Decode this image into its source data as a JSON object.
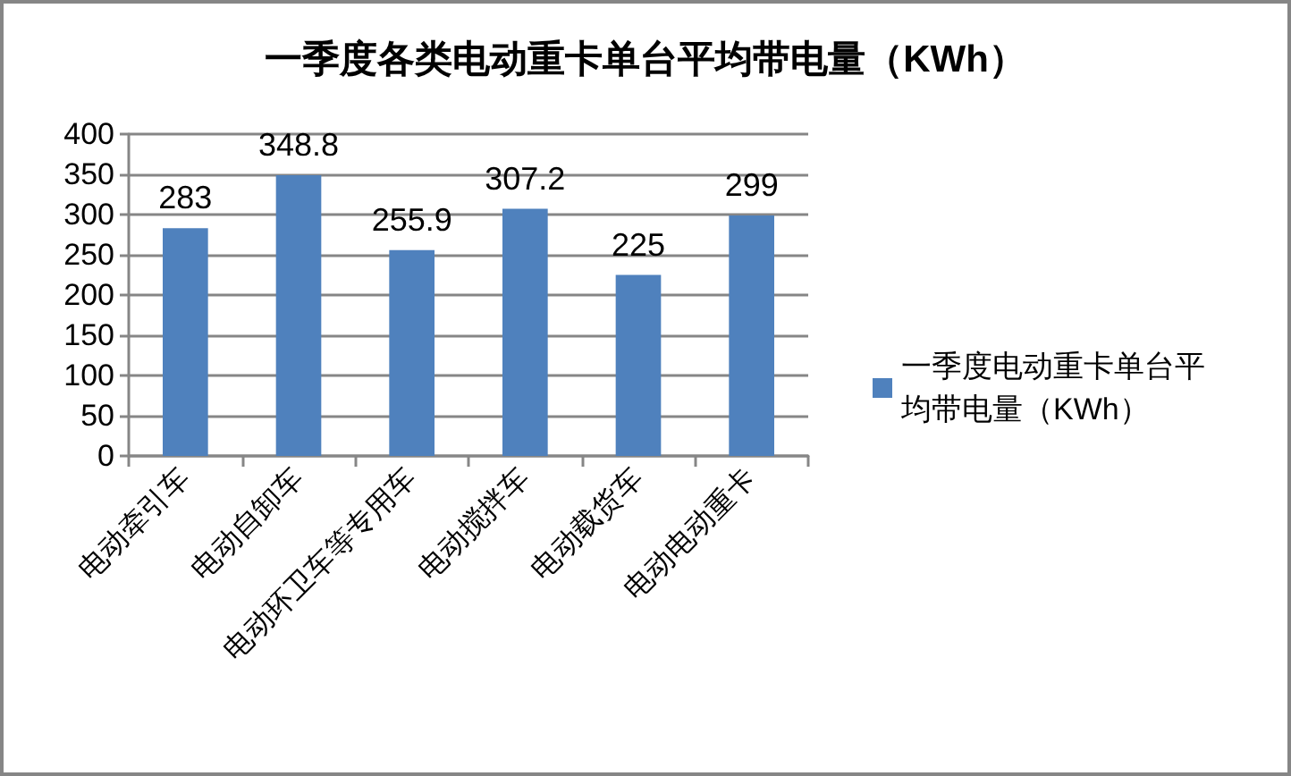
{
  "chart_data": {
    "type": "bar",
    "title": "一季度各类电动重卡单台平均带电量（KWh）",
    "categories": [
      "电动牵引车",
      "电动自卸车",
      "电动环卫车等专用车",
      "电动搅拌车",
      "电动载货车",
      "电动电动重卡"
    ],
    "series": [
      {
        "name": "一季度电动重卡单台平均带电量（KWh）",
        "color": "#4f81bd",
        "values": [
          283,
          348.8,
          255.9,
          307.2,
          225,
          299
        ]
      }
    ],
    "ylim": [
      0,
      400
    ],
    "yticks": [
      0,
      50,
      100,
      150,
      200,
      250,
      300,
      350,
      400
    ],
    "grid": "y",
    "legend": "right",
    "data_labels": true
  }
}
